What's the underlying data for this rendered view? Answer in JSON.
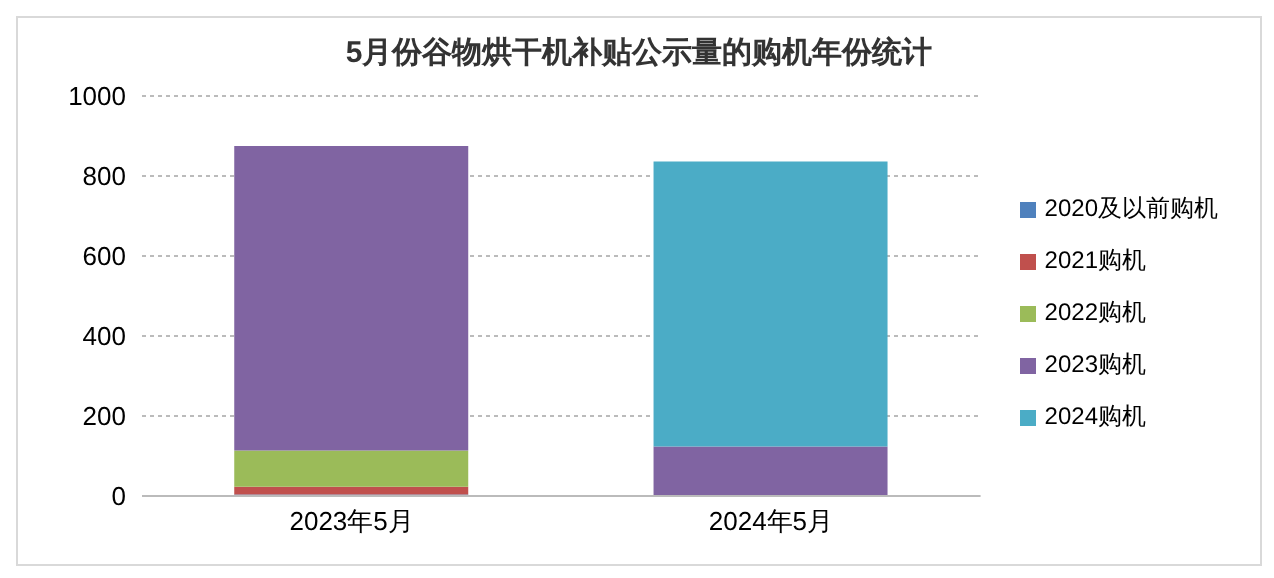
{
  "chart_data": {
    "type": "bar",
    "title": "5月份谷物烘干机补贴公示量的购机年份统计",
    "categories": [
      "2023年5月",
      "2024年5月"
    ],
    "stacked": true,
    "series": [
      {
        "name": "2020及以前购机",
        "color": "#4f81bd",
        "values": [
          4,
          0
        ]
      },
      {
        "name": "2021购机",
        "color": "#c0504d",
        "values": [
          19,
          0
        ]
      },
      {
        "name": "2022购机",
        "color": "#9bbb59",
        "values": [
          91,
          0
        ]
      },
      {
        "name": "2023购机",
        "color": "#8064a2",
        "values": [
          761,
          124
        ]
      },
      {
        "name": "2024购机",
        "color": "#4bacc6",
        "values": [
          0,
          712
        ]
      }
    ],
    "ylim": [
      0,
      1000
    ],
    "yticks": [
      0,
      200,
      400,
      600,
      800,
      1000
    ],
    "grid": "y",
    "legend": "right"
  }
}
